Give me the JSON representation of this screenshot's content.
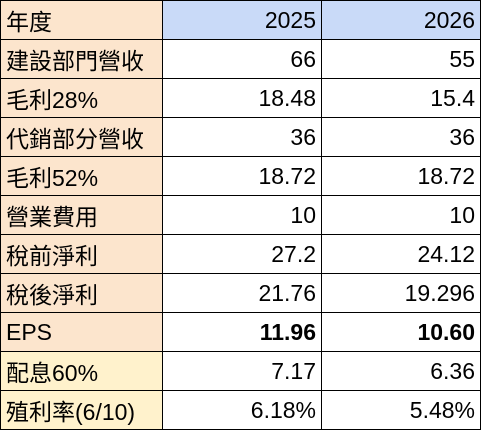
{
  "colors": {
    "label_peach": "#fce5cd",
    "label_yellow": "#fff2cc",
    "header_blue": "#c9daf8",
    "border": "#000000",
    "text": "#000000"
  },
  "table": {
    "header": {
      "label": "年度",
      "years": [
        "2025",
        "2026"
      ]
    },
    "rows": [
      {
        "label": "建設部門營收",
        "values": [
          "66",
          "55"
        ]
      },
      {
        "label": "毛利28%",
        "values": [
          "18.48",
          "15.4"
        ]
      },
      {
        "label": "代銷部分營收",
        "values": [
          "36",
          "36"
        ]
      },
      {
        "label": "毛利52%",
        "values": [
          "18.72",
          "18.72"
        ]
      },
      {
        "label": "營業費用",
        "values": [
          "10",
          "10"
        ]
      },
      {
        "label": "稅前淨利",
        "values": [
          "27.2",
          "24.12"
        ]
      },
      {
        "label": "稅後淨利",
        "values": [
          "21.76",
          "19.296"
        ]
      },
      {
        "label": "EPS",
        "values": [
          "11.96",
          "10.60"
        ]
      },
      {
        "label": "配息60%",
        "values": [
          "7.17",
          "6.36"
        ]
      },
      {
        "label": "殖利率(6/10)",
        "values": [
          "6.18%",
          "5.48%"
        ]
      }
    ]
  }
}
